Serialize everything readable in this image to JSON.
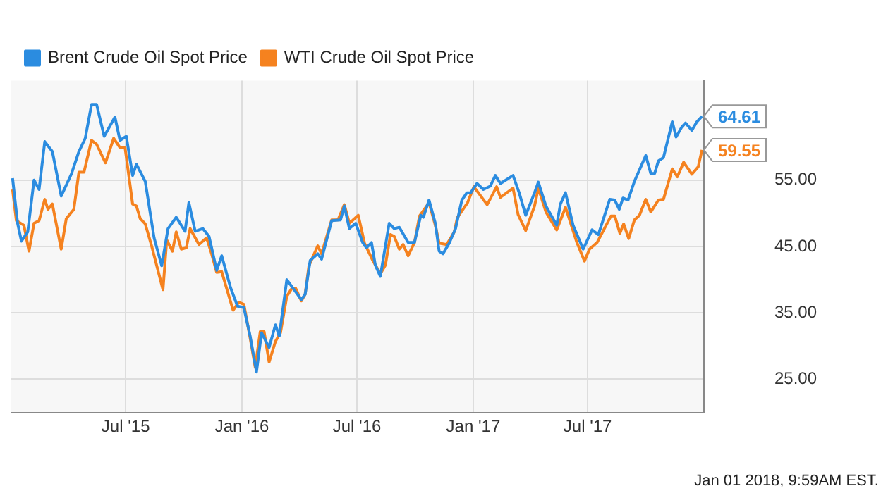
{
  "chart_data": {
    "type": "line",
    "xlim": [
      "2015-01-01",
      "2018-01-01"
    ],
    "ylim": [
      20,
      70
    ],
    "xticks": [
      {
        "value": "2015-07-01",
        "label": "Jul '15"
      },
      {
        "value": "2016-01-01",
        "label": "Jan '16"
      },
      {
        "value": "2016-07-01",
        "label": "Jul '16"
      },
      {
        "value": "2017-01-01",
        "label": "Jan '17"
      },
      {
        "value": "2017-07-01",
        "label": "Jul '17"
      }
    ],
    "yticks": [
      {
        "value": 25,
        "label": "25.00"
      },
      {
        "value": 35,
        "label": "35.00"
      },
      {
        "value": 45,
        "label": "45.00"
      },
      {
        "value": 55,
        "label": "55.00"
      }
    ],
    "grid": true,
    "legend": "top left",
    "marker": "none",
    "line_style": "solid",
    "series": [
      {
        "name": "Brent Crude Oil Spot Price",
        "color": "#2b8ce0",
        "x": [
          "2015-01-03",
          "2015-01-11",
          "2015-01-17",
          "2015-01-27",
          "2015-02-06",
          "2015-02-14",
          "2015-02-23",
          "2015-03-07",
          "2015-03-21",
          "2015-04-06",
          "2015-04-18",
          "2015-04-28",
          "2015-05-08",
          "2015-05-16",
          "2015-05-28",
          "2015-06-14",
          "2015-06-22",
          "2015-07-02",
          "2015-07-12",
          "2015-07-18",
          "2015-08-01",
          "2015-08-15",
          "2015-08-27",
          "2015-09-06",
          "2015-09-19",
          "2015-10-03",
          "2015-10-09",
          "2015-10-19",
          "2015-10-31",
          "2015-11-10",
          "2015-11-22",
          "2015-11-30",
          "2015-12-14",
          "2015-12-25",
          "2016-01-04",
          "2016-01-14",
          "2016-01-24",
          "2016-02-01",
          "2016-02-13",
          "2016-02-23",
          "2016-02-29",
          "2016-03-12",
          "2016-03-22",
          "2016-04-04",
          "2016-04-10",
          "2016-04-18",
          "2016-04-30",
          "2016-05-06",
          "2016-05-22",
          "2016-06-05",
          "2016-06-11",
          "2016-06-19",
          "2016-06-29",
          "2016-07-10",
          "2016-07-16",
          "2016-07-24",
          "2016-07-30",
          "2016-08-07",
          "2016-08-21",
          "2016-08-29",
          "2016-09-06",
          "2016-09-20",
          "2016-09-30",
          "2016-10-10",
          "2016-10-14",
          "2016-10-23",
          "2016-11-02",
          "2016-11-08",
          "2016-11-14",
          "2016-11-24",
          "2016-12-04",
          "2016-12-14",
          "2016-12-22",
          "2016-12-28",
          "2017-01-07",
          "2017-01-17",
          "2017-01-28",
          "2017-02-05",
          "2017-02-13",
          "2017-03-05",
          "2017-03-15",
          "2017-03-25",
          "2017-04-08",
          "2017-04-14",
          "2017-04-26",
          "2017-05-13",
          "2017-05-19",
          "2017-05-27",
          "2017-06-08",
          "2017-06-24",
          "2017-07-08",
          "2017-07-18",
          "2017-08-05",
          "2017-08-13",
          "2017-08-20",
          "2017-08-26",
          "2017-09-03",
          "2017-09-13",
          "2017-10-01",
          "2017-10-09",
          "2017-10-15",
          "2017-10-21",
          "2017-10-29",
          "2017-11-12",
          "2017-11-18",
          "2017-11-27",
          "2017-12-03",
          "2017-12-13",
          "2017-12-21",
          "2017-12-29"
        ],
        "values": [
          55.3,
          48.5,
          45.8,
          47.2,
          55,
          53.6,
          60.8,
          59.3,
          52.6,
          55.9,
          59.3,
          61.3,
          66.4,
          66.4,
          61.6,
          64.5,
          61,
          61.6,
          55.7,
          57.4,
          54.8,
          46.3,
          42.1,
          47.7,
          49.4,
          47.3,
          51.6,
          47.3,
          47.7,
          46.5,
          41.4,
          43.6,
          38.8,
          36,
          35.8,
          31.5,
          26.1,
          32,
          29.8,
          33.2,
          31.5,
          40,
          38.7,
          37,
          37.8,
          42.9,
          43.9,
          43.1,
          48.9,
          49,
          51.1,
          47.7,
          48.5,
          45.6,
          44.8,
          45.6,
          42.2,
          40.5,
          48.5,
          47.7,
          47.9,
          45.6,
          45.6,
          49.7,
          49.4,
          52,
          48.5,
          44.3,
          43.9,
          45.5,
          47.7,
          52,
          53.1,
          53.1,
          54.5,
          53.6,
          54.1,
          55.7,
          54.5,
          55.7,
          53,
          49.7,
          53.1,
          54.7,
          51.1,
          48.2,
          51.4,
          53.1,
          48.2,
          44.6,
          47.5,
          46.8,
          52.1,
          52,
          50.6,
          52.3,
          52,
          54.8,
          58.7,
          56,
          56,
          57.9,
          58.4,
          63.8,
          61.5,
          63,
          63.6,
          62.5,
          63.8,
          64.61
        ]
      },
      {
        "name": "WTI Crude Oil Spot Price",
        "color": "#f5821f",
        "x": [
          "2015-01-03",
          "2015-01-09",
          "2015-01-21",
          "2015-01-29",
          "2015-02-06",
          "2015-02-14",
          "2015-02-23",
          "2015-02-28",
          "2015-03-07",
          "2015-03-21",
          "2015-03-29",
          "2015-04-10",
          "2015-04-18",
          "2015-04-26",
          "2015-05-08",
          "2015-05-16",
          "2015-05-30",
          "2015-06-12",
          "2015-06-22",
          "2015-06-30",
          "2015-07-12",
          "2015-07-18",
          "2015-07-24",
          "2015-08-01",
          "2015-08-11",
          "2015-08-29",
          "2015-09-04",
          "2015-09-13",
          "2015-09-19",
          "2015-09-27",
          "2015-10-05",
          "2015-10-11",
          "2015-10-25",
          "2015-11-06",
          "2015-11-14",
          "2015-11-22",
          "2015-11-30",
          "2015-12-18",
          "2015-12-27",
          "2016-01-04",
          "2016-01-14",
          "2016-01-22",
          "2016-01-30",
          "2016-02-05",
          "2016-02-13",
          "2016-02-23",
          "2016-03-02",
          "2016-03-12",
          "2016-03-20",
          "2016-03-26",
          "2016-04-04",
          "2016-04-10",
          "2016-04-16",
          "2016-04-30",
          "2016-05-06",
          "2016-05-22",
          "2016-06-01",
          "2016-06-11",
          "2016-06-19",
          "2016-07-03",
          "2016-07-13",
          "2016-07-26",
          "2016-08-07",
          "2016-08-15",
          "2016-08-23",
          "2016-08-29",
          "2016-09-06",
          "2016-09-12",
          "2016-09-20",
          "2016-09-30",
          "2016-10-08",
          "2016-10-23",
          "2016-11-02",
          "2016-11-08",
          "2016-11-20",
          "2016-12-02",
          "2016-12-07",
          "2016-12-23",
          "2017-01-02",
          "2017-01-23",
          "2017-02-07",
          "2017-02-13",
          "2017-03-05",
          "2017-03-13",
          "2017-03-25",
          "2017-04-08",
          "2017-04-14",
          "2017-04-26",
          "2017-05-13",
          "2017-05-27",
          "2017-06-14",
          "2017-06-26",
          "2017-07-04",
          "2017-07-16",
          "2017-08-07",
          "2017-08-13",
          "2017-08-21",
          "2017-08-27",
          "2017-09-04",
          "2017-09-13",
          "2017-09-21",
          "2017-10-01",
          "2017-10-09",
          "2017-10-21",
          "2017-10-29",
          "2017-11-12",
          "2017-11-20",
          "2017-11-30",
          "2017-12-13",
          "2017-12-23",
          "2017-12-29"
        ],
        "values": [
          53.6,
          48.9,
          48.2,
          44.3,
          48.5,
          48.9,
          52.1,
          50.6,
          51.4,
          44.6,
          49.2,
          50.6,
          56.2,
          56.2,
          61,
          60.4,
          57.6,
          61.3,
          59.9,
          59.9,
          51.4,
          51.1,
          49.2,
          48.4,
          45.1,
          38.5,
          46,
          44.3,
          47.2,
          44.6,
          44.8,
          47.7,
          45.3,
          46.3,
          43.9,
          41.1,
          41.2,
          35.4,
          36.6,
          36.3,
          31.2,
          26.8,
          32.2,
          32.2,
          27.6,
          30.7,
          32,
          37.5,
          38.7,
          38.7,
          36.8,
          37.8,
          42.1,
          45.1,
          43.9,
          49,
          49,
          51.3,
          48.5,
          49.7,
          45.5,
          42.9,
          40.9,
          42.2,
          46.8,
          46.5,
          44.6,
          45.3,
          43.6,
          45.6,
          49.6,
          51.6,
          48.2,
          45.5,
          45.3,
          47.2,
          49.4,
          51.6,
          54,
          51.3,
          54,
          52.4,
          53.8,
          49.8,
          47.4,
          51.1,
          53.8,
          50.2,
          47.5,
          50.9,
          45.6,
          42.8,
          44.6,
          45.6,
          49.6,
          49.6,
          47,
          48.4,
          46.2,
          49,
          49.7,
          52.1,
          50.2,
          52,
          52.1,
          56.7,
          55.5,
          57.7,
          55.9,
          57,
          59.55
        ]
      }
    ],
    "annotations": [
      {
        "text": "64.61",
        "x": "2017-12-29",
        "y": 64.61
      },
      {
        "text": "59.55",
        "x": "2017-12-29",
        "y": 59.55
      },
      "Jan 01 2018, 9:59AM EST."
    ]
  }
}
